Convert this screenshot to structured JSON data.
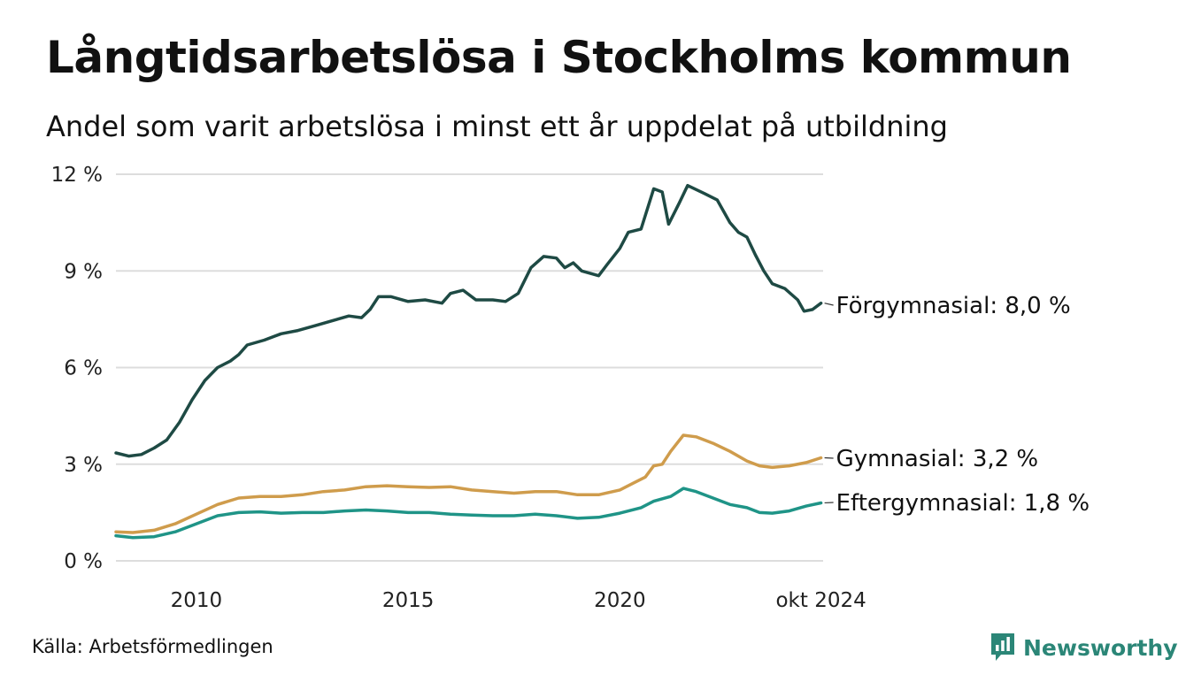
{
  "title": "Långtidsarbetslösa i Stockholms kommun",
  "subtitle": "Andel som varit arbetslösa i minst ett år uppdelat på utbildning",
  "source": "Källa: Arbetsförmedlingen",
  "brand": "Newsworthy",
  "colors": {
    "forgymnasial": "#1e4a44",
    "gymnasial": "#cf9c4c",
    "eftergymnasial": "#1f9487",
    "grid": "#dddddd",
    "brand": "#2b8677"
  },
  "chart_data": {
    "type": "line",
    "title": "Långtidsarbetslösa i Stockholms kommun",
    "xlabel": "",
    "ylabel": "",
    "ylim": [
      0,
      12
    ],
    "xlim": [
      2008.1,
      2024.8
    ],
    "y_ticks": [
      {
        "value": 0,
        "label": "0 %"
      },
      {
        "value": 3,
        "label": "3 %"
      },
      {
        "value": 6,
        "label": "6 %"
      },
      {
        "value": 9,
        "label": "9 %"
      },
      {
        "value": 12,
        "label": "12 %"
      }
    ],
    "x_ticks": [
      {
        "value": 2010,
        "label": "2010"
      },
      {
        "value": 2015,
        "label": "2015"
      },
      {
        "value": 2020,
        "label": "2020"
      },
      {
        "value": 2024.75,
        "label": "okt 2024"
      }
    ],
    "series": [
      {
        "name": "Förgymnasial",
        "color": "#1e4a44",
        "end_label": "Förgymnasial: 8,0 %",
        "points": [
          [
            2008.1,
            3.35
          ],
          [
            2008.4,
            3.25
          ],
          [
            2008.7,
            3.3
          ],
          [
            2009.0,
            3.5
          ],
          [
            2009.3,
            3.75
          ],
          [
            2009.6,
            4.3
          ],
          [
            2009.9,
            5.0
          ],
          [
            2010.2,
            5.6
          ],
          [
            2010.5,
            6.0
          ],
          [
            2010.8,
            6.2
          ],
          [
            2011.0,
            6.4
          ],
          [
            2011.2,
            6.7
          ],
          [
            2011.6,
            6.85
          ],
          [
            2012.0,
            7.05
          ],
          [
            2012.4,
            7.15
          ],
          [
            2012.8,
            7.3
          ],
          [
            2013.2,
            7.45
          ],
          [
            2013.6,
            7.6
          ],
          [
            2013.9,
            7.55
          ],
          [
            2014.1,
            7.8
          ],
          [
            2014.3,
            8.2
          ],
          [
            2014.6,
            8.2
          ],
          [
            2015.0,
            8.05
          ],
          [
            2015.4,
            8.1
          ],
          [
            2015.8,
            8.0
          ],
          [
            2016.0,
            8.3
          ],
          [
            2016.3,
            8.4
          ],
          [
            2016.6,
            8.1
          ],
          [
            2017.0,
            8.1
          ],
          [
            2017.3,
            8.05
          ],
          [
            2017.6,
            8.3
          ],
          [
            2017.9,
            9.1
          ],
          [
            2018.2,
            9.45
          ],
          [
            2018.5,
            9.4
          ],
          [
            2018.7,
            9.1
          ],
          [
            2018.9,
            9.25
          ],
          [
            2019.1,
            9.0
          ],
          [
            2019.5,
            8.85
          ],
          [
            2019.7,
            9.2
          ],
          [
            2020.0,
            9.7
          ],
          [
            2020.2,
            10.2
          ],
          [
            2020.5,
            10.3
          ],
          [
            2020.8,
            11.55
          ],
          [
            2021.0,
            11.45
          ],
          [
            2021.15,
            10.45
          ],
          [
            2021.4,
            11.1
          ],
          [
            2021.6,
            11.65
          ],
          [
            2022.0,
            11.4
          ],
          [
            2022.3,
            11.2
          ],
          [
            2022.6,
            10.5
          ],
          [
            2022.8,
            10.2
          ],
          [
            2023.0,
            10.05
          ],
          [
            2023.2,
            9.5
          ],
          [
            2023.4,
            9.0
          ],
          [
            2023.6,
            8.6
          ],
          [
            2023.9,
            8.45
          ],
          [
            2024.2,
            8.1
          ],
          [
            2024.35,
            7.75
          ],
          [
            2024.55,
            7.8
          ],
          [
            2024.75,
            8.0
          ]
        ]
      },
      {
        "name": "Gymnasial",
        "color": "#cf9c4c",
        "end_label": "Gymnasial: 3,2 %",
        "points": [
          [
            2008.1,
            0.9
          ],
          [
            2008.5,
            0.88
          ],
          [
            2009.0,
            0.95
          ],
          [
            2009.5,
            1.15
          ],
          [
            2010.0,
            1.45
          ],
          [
            2010.5,
            1.75
          ],
          [
            2011.0,
            1.95
          ],
          [
            2011.5,
            2.0
          ],
          [
            2012.0,
            2.0
          ],
          [
            2012.5,
            2.05
          ],
          [
            2013.0,
            2.15
          ],
          [
            2013.5,
            2.2
          ],
          [
            2014.0,
            2.3
          ],
          [
            2014.5,
            2.33
          ],
          [
            2015.0,
            2.3
          ],
          [
            2015.5,
            2.28
          ],
          [
            2016.0,
            2.3
          ],
          [
            2016.5,
            2.2
          ],
          [
            2017.0,
            2.15
          ],
          [
            2017.5,
            2.1
          ],
          [
            2018.0,
            2.15
          ],
          [
            2018.5,
            2.15
          ],
          [
            2019.0,
            2.05
          ],
          [
            2019.5,
            2.05
          ],
          [
            2020.0,
            2.2
          ],
          [
            2020.3,
            2.4
          ],
          [
            2020.6,
            2.6
          ],
          [
            2020.8,
            2.95
          ],
          [
            2021.0,
            3.0
          ],
          [
            2021.2,
            3.4
          ],
          [
            2021.5,
            3.9
          ],
          [
            2021.8,
            3.85
          ],
          [
            2022.2,
            3.65
          ],
          [
            2022.6,
            3.4
          ],
          [
            2023.0,
            3.1
          ],
          [
            2023.3,
            2.95
          ],
          [
            2023.6,
            2.9
          ],
          [
            2024.0,
            2.95
          ],
          [
            2024.4,
            3.05
          ],
          [
            2024.75,
            3.2
          ]
        ]
      },
      {
        "name": "Eftergymnasial",
        "color": "#1f9487",
        "end_label": "Eftergymnasial: 1,8 %",
        "points": [
          [
            2008.1,
            0.78
          ],
          [
            2008.5,
            0.72
          ],
          [
            2009.0,
            0.75
          ],
          [
            2009.5,
            0.9
          ],
          [
            2010.0,
            1.15
          ],
          [
            2010.5,
            1.4
          ],
          [
            2011.0,
            1.5
          ],
          [
            2011.5,
            1.52
          ],
          [
            2012.0,
            1.48
          ],
          [
            2012.5,
            1.5
          ],
          [
            2013.0,
            1.5
          ],
          [
            2013.5,
            1.55
          ],
          [
            2014.0,
            1.58
          ],
          [
            2014.5,
            1.55
          ],
          [
            2015.0,
            1.5
          ],
          [
            2015.5,
            1.5
          ],
          [
            2016.0,
            1.45
          ],
          [
            2016.5,
            1.42
          ],
          [
            2017.0,
            1.4
          ],
          [
            2017.5,
            1.4
          ],
          [
            2018.0,
            1.45
          ],
          [
            2018.5,
            1.4
          ],
          [
            2019.0,
            1.32
          ],
          [
            2019.5,
            1.35
          ],
          [
            2020.0,
            1.48
          ],
          [
            2020.5,
            1.65
          ],
          [
            2020.8,
            1.85
          ],
          [
            2021.2,
            2.0
          ],
          [
            2021.5,
            2.25
          ],
          [
            2021.8,
            2.15
          ],
          [
            2022.2,
            1.95
          ],
          [
            2022.6,
            1.75
          ],
          [
            2023.0,
            1.65
          ],
          [
            2023.3,
            1.5
          ],
          [
            2023.6,
            1.48
          ],
          [
            2024.0,
            1.55
          ],
          [
            2024.4,
            1.7
          ],
          [
            2024.75,
            1.8
          ]
        ]
      }
    ]
  }
}
